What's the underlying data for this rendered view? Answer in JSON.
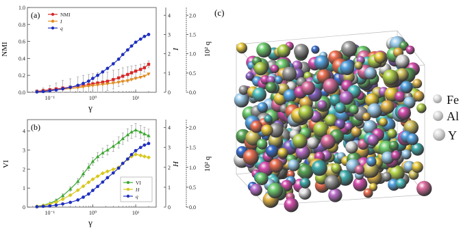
{
  "panel_c": {
    "label": "(c)",
    "legend": [
      {
        "label": "Fe",
        "color": "#c9c9c9"
      },
      {
        "label": "Al",
        "color": "#c9c9c9"
      },
      {
        "label": "Y",
        "color": "#c9c9c9"
      }
    ],
    "palette": [
      "#d94fb0",
      "#56a8e8",
      "#b6d64a",
      "#e9b94a",
      "#8a64c8",
      "#4fc7c7",
      "#e8e8e8",
      "#f07050",
      "#5aa858",
      "#d8c860",
      "#a0a0a0",
      "#3a6fd0",
      "#e06fa0",
      "#9fd0f0",
      "#c070d0",
      "#70d070",
      "#f0d040",
      "#40b0b0"
    ]
  },
  "chart_data": [
    {
      "panel": "(a)",
      "type": "line",
      "xlabel": "γ",
      "ylabel": "NMI",
      "y2label": "I",
      "y3label": "10² q",
      "xscale": "log",
      "xlim": [
        0.03,
        30
      ],
      "ylim": [
        0,
        1.0
      ],
      "y2lim": [
        0,
        4.4
      ],
      "y3lim": [
        0,
        2.2
      ],
      "yticks": [
        "0.0",
        "0.2",
        "0.4",
        "0.6",
        "0.8",
        "1.0"
      ],
      "y2ticks": [
        "0",
        "1",
        "2",
        "3",
        "4"
      ],
      "y3ticks": [
        "0.0",
        "0.5",
        "1.0",
        "1.5",
        "2.0"
      ],
      "xticks": [
        "10⁻¹",
        "10⁰",
        "10¹"
      ],
      "legend_position": "top-left",
      "x": [
        0.05,
        0.07,
        0.1,
        0.14,
        0.2,
        0.3,
        0.45,
        0.6,
        0.8,
        1.0,
        1.3,
        1.7,
        2.2,
        3.0,
        4.0,
        5.0,
        6.5,
        8.0,
        10,
        13,
        16,
        20
      ],
      "series": [
        {
          "name": "NMI",
          "color": "#d62828",
          "marker": "square",
          "axis": "left",
          "values": [
            0.01,
            0.02,
            0.03,
            0.04,
            0.05,
            0.06,
            0.07,
            0.08,
            0.09,
            0.1,
            0.11,
            0.12,
            0.13,
            0.15,
            0.17,
            0.19,
            0.21,
            0.23,
            0.25,
            0.27,
            0.29,
            0.33
          ],
          "error": [
            0.02,
            0.03,
            0.05,
            0.07,
            0.09,
            0.1,
            0.11,
            0.12,
            0.12,
            0.12,
            0.12,
            0.12,
            0.11,
            0.11,
            0.1,
            0.1,
            0.09,
            0.08,
            0.07,
            0.06,
            0.05,
            0.04
          ]
        },
        {
          "name": "I",
          "color": "#e08a1e",
          "marker": "triangle-down",
          "axis": "right",
          "values": [
            0.02,
            0.05,
            0.08,
            0.12,
            0.16,
            0.2,
            0.24,
            0.28,
            0.32,
            0.35,
            0.38,
            0.41,
            0.44,
            0.48,
            0.52,
            0.56,
            0.6,
            0.66,
            0.72,
            0.78,
            0.84,
            0.95
          ]
        },
        {
          "name": "q",
          "color": "#1f2fbf",
          "marker": "circle",
          "axis": "right2",
          "values": [
            0.01,
            0.02,
            0.04,
            0.06,
            0.09,
            0.13,
            0.18,
            0.23,
            0.29,
            0.36,
            0.44,
            0.53,
            0.62,
            0.74,
            0.86,
            0.98,
            1.1,
            1.2,
            1.3,
            1.38,
            1.45,
            1.5
          ]
        }
      ]
    },
    {
      "panel": "(b)",
      "type": "line",
      "xlabel": "γ",
      "ylabel": "VI",
      "y2label": "H",
      "y3label": "10² q",
      "xscale": "log",
      "xlim": [
        0.03,
        30
      ],
      "ylim": [
        0,
        4.6
      ],
      "y2lim": [
        0,
        4.4
      ],
      "y3lim": [
        0,
        2.2
      ],
      "yticks": [
        "0",
        "1",
        "2",
        "3",
        "4"
      ],
      "y2ticks": [
        "0",
        "1",
        "2",
        "3",
        "4"
      ],
      "y3ticks": [
        "0.0",
        "0.5",
        "1.0",
        "1.5",
        "2.0"
      ],
      "xticks": [
        "10⁻¹",
        "10⁰",
        "10¹"
      ],
      "legend_position": "bottom-right",
      "x": [
        0.05,
        0.07,
        0.1,
        0.14,
        0.2,
        0.3,
        0.45,
        0.6,
        0.8,
        1.0,
        1.3,
        1.7,
        2.2,
        3.0,
        4.0,
        5.0,
        6.5,
        8.0,
        10,
        13,
        16,
        20
      ],
      "series": [
        {
          "name": "VI",
          "color": "#3aa830",
          "marker": "triangle-up",
          "axis": "left",
          "values": [
            0.05,
            0.1,
            0.2,
            0.35,
            0.6,
            0.95,
            1.35,
            1.75,
            2.1,
            2.4,
            2.65,
            2.85,
            3.0,
            3.2,
            3.4,
            3.6,
            3.8,
            3.95,
            4.05,
            3.95,
            3.85,
            3.75
          ],
          "error": [
            0.02,
            0.03,
            0.05,
            0.08,
            0.1,
            0.12,
            0.14,
            0.16,
            0.18,
            0.2,
            0.22,
            0.24,
            0.26,
            0.28,
            0.3,
            0.3,
            0.32,
            0.34,
            0.35,
            0.35,
            0.35,
            0.35
          ]
        },
        {
          "name": "H",
          "color": "#d8c81c",
          "marker": "diamond",
          "axis": "right",
          "values": [
            0.04,
            0.08,
            0.15,
            0.25,
            0.4,
            0.6,
            0.85,
            1.05,
            1.25,
            1.4,
            1.55,
            1.7,
            1.8,
            1.9,
            2.0,
            2.2,
            2.4,
            2.55,
            2.65,
            2.6,
            2.55,
            2.5
          ]
        },
        {
          "name": "q",
          "color": "#1f2fbf",
          "marker": "circle",
          "axis": "right2",
          "values": [
            0.01,
            0.02,
            0.03,
            0.05,
            0.08,
            0.12,
            0.18,
            0.25,
            0.33,
            0.42,
            0.52,
            0.63,
            0.74,
            0.86,
            0.98,
            1.1,
            1.21,
            1.32,
            1.42,
            1.5,
            1.56,
            1.6
          ]
        }
      ]
    }
  ]
}
